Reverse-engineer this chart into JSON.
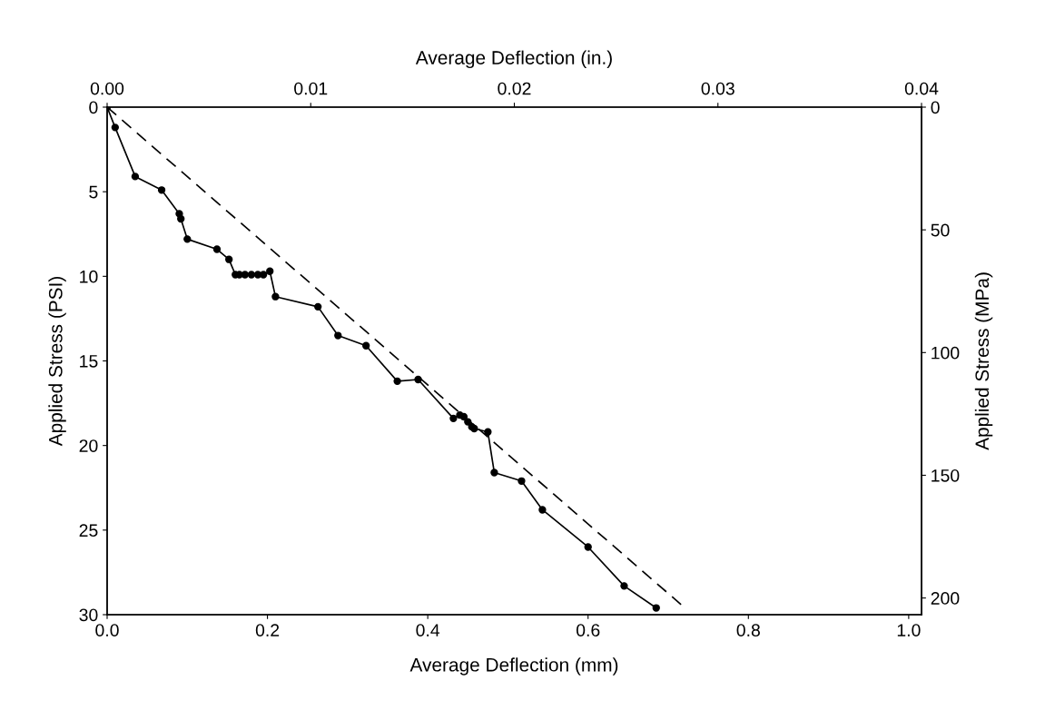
{
  "chart_data": {
    "type": "line",
    "xlabel": "Average Deflection (mm)",
    "ylabel": "Applied Stress (PSI)",
    "y2label": "Applied Stress (MPa)",
    "x2label": "Average Deflection (in.)",
    "xlim": [
      0,
      1.016
    ],
    "xticks": [
      {
        "value": 0,
        "label": "0.0"
      },
      0.2,
      0.4,
      0.6,
      0.8,
      {
        "value": 1.0,
        "label": "1.0"
      }
    ],
    "ylim": [
      30,
      0
    ],
    "yticks": [
      0,
      5,
      10,
      15,
      20,
      25,
      30
    ],
    "y2lim": [
      206.8,
      0
    ],
    "y2ticks": [
      0,
      50,
      100,
      150,
      200
    ],
    "x2lim": [
      0,
      0.04
    ],
    "x2ticks": [
      {
        "value": 0,
        "label": "0.00"
      },
      0.01,
      0.02,
      0.03,
      0.04
    ],
    "grid": false,
    "series": [
      {
        "color": "#000000",
        "marker": "circle",
        "line_style": "solid",
        "x": [
          0,
          0.01,
          0.035,
          0.068,
          0.09,
          0.092,
          0.1,
          0.137,
          0.152,
          0.16,
          0.165,
          0.172,
          0.18,
          0.188,
          0.195,
          0.203,
          0.21,
          0.263,
          0.288,
          0.323,
          0.362,
          0.388,
          0.432,
          0.44,
          0.445,
          0.45,
          0.455,
          0.458,
          0.475,
          0.483,
          0.517,
          0.543,
          0.6,
          0.645,
          0.685
        ],
        "values": [
          0,
          1.2,
          4.1,
          4.9,
          6.3,
          6.6,
          7.8,
          8.4,
          9.0,
          9.9,
          9.9,
          9.9,
          9.9,
          9.9,
          9.9,
          9.7,
          11.2,
          11.8,
          13.5,
          14.1,
          16.2,
          16.1,
          18.4,
          18.2,
          18.3,
          18.6,
          18.9,
          19.0,
          19.2,
          21.6,
          22.1,
          23.8,
          26.0,
          28.3,
          29.6
        ]
      },
      {
        "color": "#000000",
        "marker": "none",
        "line_style": "dashed",
        "x": [
          0,
          0.716
        ],
        "values": [
          0,
          29.4
        ]
      }
    ]
  }
}
